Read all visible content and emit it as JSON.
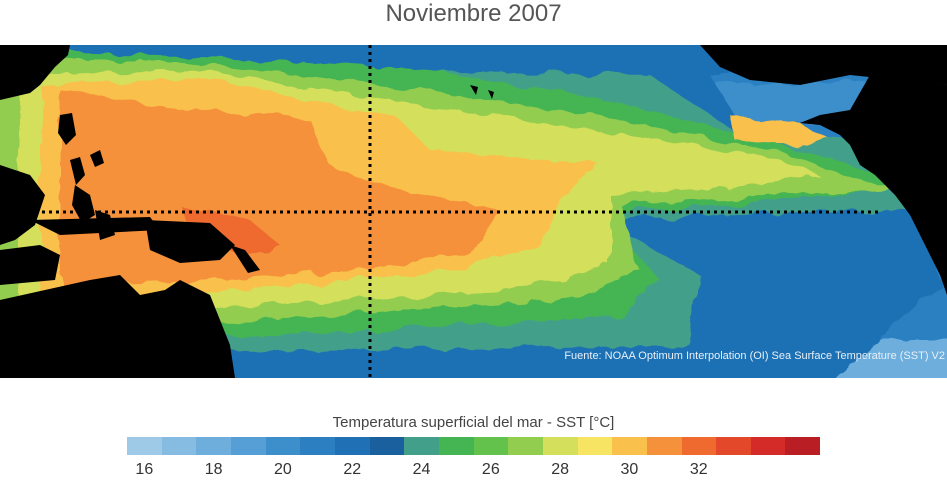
{
  "title": "Noviembre 2007",
  "source": "Fuente: NOAA Optimum Interpolation (OI) Sea Surface Temperature (SST) V2",
  "colorbar": {
    "title": "Temperatura superficial del mar - SST  [°C]",
    "colors": [
      "#9ecae8",
      "#86bbe2",
      "#6daedd",
      "#559fd6",
      "#3d8fcc",
      "#2c80c1",
      "#1f70b4",
      "#1a609f",
      "#42a08a",
      "#45b553",
      "#62c24c",
      "#93cd4f",
      "#d4e05c",
      "#f8e463",
      "#f9c14b",
      "#f5913a",
      "#ee6a2f",
      "#e4482a",
      "#d42a28",
      "#b81e24"
    ],
    "tick_labels": [
      "16",
      "18",
      "20",
      "22",
      "24",
      "26",
      "28",
      "30",
      "32"
    ]
  }
}
